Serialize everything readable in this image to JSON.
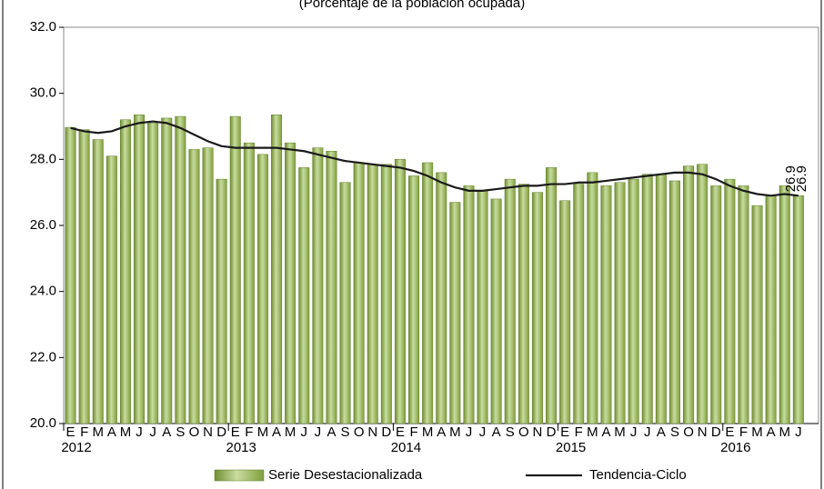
{
  "chart_data": {
    "type": "bar",
    "subtitle": "(Porcentaje de la población ocupada)",
    "categories": [
      "E",
      "F",
      "M",
      "A",
      "M",
      "J",
      "J",
      "A",
      "S",
      "O",
      "N",
      "D",
      "E",
      "F",
      "M",
      "A",
      "M",
      "J",
      "J",
      "A",
      "S",
      "O",
      "N",
      "D",
      "E",
      "F",
      "M",
      "A",
      "M",
      "J",
      "J",
      "A",
      "S",
      "O",
      "N",
      "D",
      "E",
      "F",
      "M",
      "A",
      "M",
      "J",
      "J",
      "A",
      "S",
      "O",
      "N",
      "D",
      "E",
      "F",
      "M",
      "A",
      "M",
      "J"
    ],
    "years": [
      "2012",
      "2013",
      "2014",
      "2015",
      "2016"
    ],
    "series": [
      {
        "name": "Serie Desestacionalizada",
        "type": "bar",
        "color": "#9bbb59",
        "values": [
          28.97,
          28.9,
          28.6,
          28.1,
          29.2,
          29.35,
          29.1,
          29.25,
          29.3,
          28.3,
          28.35,
          27.4,
          29.3,
          28.5,
          28.15,
          29.35,
          28.5,
          27.75,
          28.35,
          28.25,
          27.3,
          27.9,
          27.85,
          27.85,
          28.0,
          27.5,
          27.9,
          27.6,
          26.7,
          27.2,
          27.05,
          26.8,
          27.4,
          27.25,
          27.0,
          27.75,
          26.75,
          27.25,
          27.6,
          27.2,
          27.3,
          27.4,
          27.55,
          27.55,
          27.35,
          27.8,
          27.85,
          27.2,
          27.4,
          27.2,
          26.6,
          26.9,
          27.2,
          26.9
        ]
      },
      {
        "name": "Tendencia-Ciclo",
        "type": "line",
        "color": "#1a1a1a",
        "values": [
          28.95,
          28.85,
          28.8,
          28.85,
          29.0,
          29.1,
          29.15,
          29.1,
          28.95,
          28.75,
          28.55,
          28.4,
          28.35,
          28.35,
          28.35,
          28.35,
          28.3,
          28.25,
          28.15,
          28.05,
          27.95,
          27.9,
          27.85,
          27.8,
          27.75,
          27.65,
          27.5,
          27.3,
          27.15,
          27.05,
          27.05,
          27.1,
          27.15,
          27.2,
          27.2,
          27.25,
          27.25,
          27.3,
          27.3,
          27.35,
          27.4,
          27.45,
          27.5,
          27.55,
          27.6,
          27.6,
          27.55,
          27.4,
          27.2,
          27.05,
          26.95,
          26.9,
          26.95,
          26.9
        ]
      }
    ],
    "ylim": [
      20,
      32
    ],
    "yticks": [
      {
        "value": 20,
        "label": "20.0"
      },
      {
        "value": 22,
        "label": "22.0"
      },
      {
        "value": 24,
        "label": "24.0"
      },
      {
        "value": 26,
        "label": "26.0"
      },
      {
        "value": 28,
        "label": "28.0"
      },
      {
        "value": 30,
        "label": "30.0"
      },
      {
        "value": 32,
        "label": "32.0"
      }
    ],
    "grid": false
  }
}
